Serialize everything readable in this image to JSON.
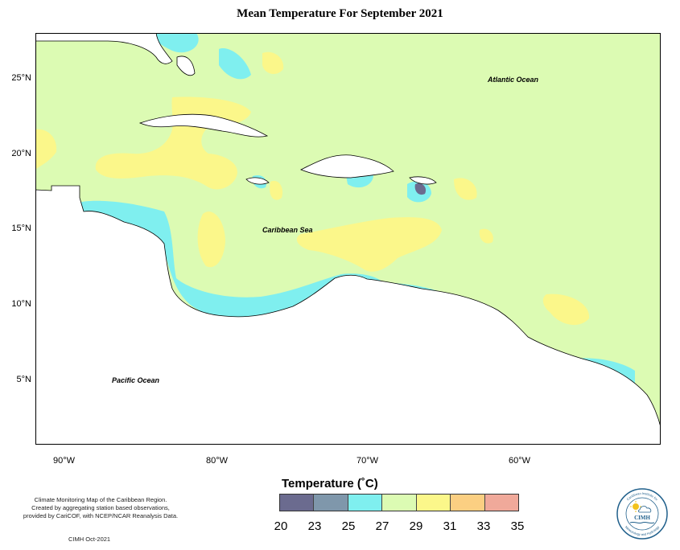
{
  "title": "Mean Temperature For September 2021",
  "y_ticks": [
    "25°N",
    "20°N",
    "15°N",
    "10°N",
    "5°N"
  ],
  "x_ticks": [
    "90°W",
    "80°W",
    "70°W",
    "60°W"
  ],
  "labels": {
    "atlantic": "Atlantic Ocean",
    "caribbean": "Caribbean Sea",
    "pacific": "Pacific Ocean"
  },
  "legend": {
    "title": "Temperature (˚C)",
    "values": [
      "20",
      "23",
      "25",
      "27",
      "29",
      "31",
      "33",
      "35"
    ],
    "colors": [
      "#6b6b8f",
      "#7f97ab",
      "#7fefef",
      "#dcfbb3",
      "#fbf78a",
      "#fbcf82",
      "#f0a99a"
    ]
  },
  "note": {
    "line1": "Climate Monitoring Map of the Caribbean Region.",
    "line2": "Created by aggregating station based observations,",
    "line3": "provided by CariCOF, with NCEP/NCAR Reanalysis Data."
  },
  "credit": "CIMH Oct-2021",
  "logo": {
    "text": "CIMH",
    "ring_top": "Caribbean Institute for",
    "ring_bottom": "Meteorology and Hydrology"
  }
}
